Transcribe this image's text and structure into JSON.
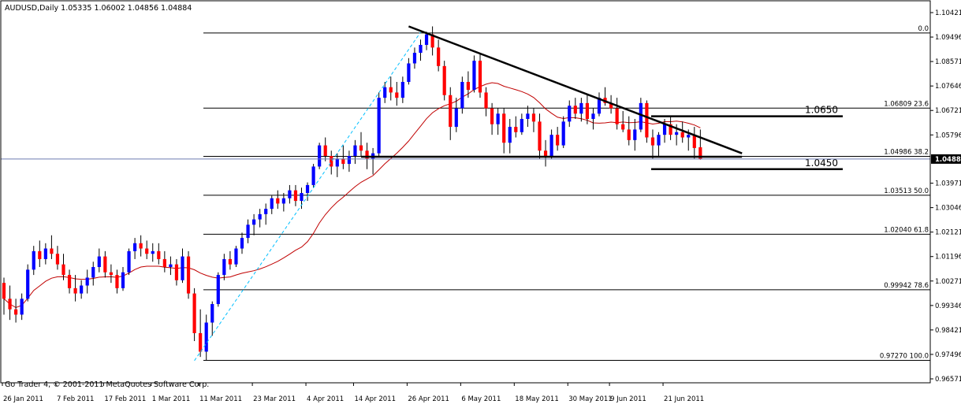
{
  "header": {
    "title": "AUDUSD,Daily  1.05335 1.06002 1.04856 1.04884"
  },
  "footer": {
    "copyright": "Go Trader 4, © 2001-2011 MetaQuotes Software Corp."
  },
  "colors": {
    "up": "#0000ff",
    "down": "#ff0000",
    "wick": "#000000",
    "ma": "#c00000",
    "fib": "#000000",
    "trend": "#000000",
    "ascending": "#00bfff",
    "current_price_line": "#6d7bb0",
    "price_tag_bg": "#000000",
    "price_tag_text": "#ffffff",
    "frame": "#000000"
  },
  "chart_data": {
    "type": "candlestick",
    "symbol": "AUDUSD",
    "timeframe": "Daily",
    "ohlc_header": {
      "open": 1.05335,
      "high": 1.06002,
      "low": 1.04856,
      "close": 1.04884
    },
    "ylim": [
      0.96571,
      1.10421
    ],
    "y_ticks": [
      "1.10421",
      "1.09496",
      "1.08571",
      "1.07646",
      "1.06721",
      "1.05796",
      "1.04884",
      "1.03971",
      "1.03046",
      "1.02121",
      "1.01196",
      "1.00271",
      "0.99346",
      "0.98421",
      "0.97496",
      "0.96571"
    ],
    "current_price": "1.04884",
    "x_labels": [
      "26 Jan 2011",
      "7 Feb 2011",
      "17 Feb 2011",
      "1 Mar 2011",
      "11 Mar 2011",
      "23 Mar 2011",
      "4 Apr 2011",
      "14 Apr 2011",
      "26 Apr 2011",
      "6 May 2011",
      "18 May 2011",
      "30 May 2011",
      "9 Jun 2011",
      "21 Jun 2011"
    ],
    "label_bars": [
      0,
      9,
      17,
      25,
      33,
      42,
      51,
      59,
      68,
      77,
      86,
      95,
      102,
      111
    ],
    "fib_levels": [
      {
        "price": 1.09649,
        "label": "0.0"
      },
      {
        "price": 1.06809,
        "label": "1.06809  23.6"
      },
      {
        "price": 1.04986,
        "label": "1.04986  38.2"
      },
      {
        "price": 1.03513,
        "label": "1.03513  50.0"
      },
      {
        "price": 1.0204,
        "label": "1.02040  61.8"
      },
      {
        "price": 0.99942,
        "label": "0.99942  78.6"
      },
      {
        "price": 0.9727,
        "label": "0.97270  100.0"
      }
    ],
    "annotations": [
      {
        "text": "1.0650",
        "price": 1.065
      },
      {
        "text": "1.0450",
        "price": 1.045
      }
    ],
    "trendline": {
      "start_bar": 68,
      "start_price": 1.099,
      "end_bar": 124,
      "end_price": 1.051
    },
    "support_line": {
      "start_bar": 60,
      "end_bar": 124,
      "price": 1.0497
    },
    "ascending_line": {
      "start_bar": 32,
      "start_price": 0.9726,
      "end_bar": 70,
      "end_price": 1.0968
    },
    "ma_period": 20,
    "candles": [
      [
        1.002,
        1.004,
        0.99,
        0.996
      ],
      [
        0.996,
        1.001,
        0.988,
        0.992
      ],
      [
        0.992,
        0.996,
        0.987,
        0.99
      ],
      [
        0.99,
        0.998,
        0.988,
        0.996
      ],
      [
        0.996,
        1.009,
        0.995,
        1.007
      ],
      [
        1.007,
        1.016,
        1.005,
        1.014
      ],
      [
        1.014,
        1.018,
        1.008,
        1.011
      ],
      [
        1.011,
        1.017,
        1.009,
        1.015
      ],
      [
        1.015,
        1.02,
        1.011,
        1.013
      ],
      [
        1.013,
        1.016,
        1.007,
        1.009
      ],
      [
        1.009,
        1.013,
        1.003,
        1.005
      ],
      [
        1.005,
        1.007,
        0.998,
        1.0
      ],
      [
        1.0,
        1.005,
        0.995,
        0.998
      ],
      [
        0.998,
        1.003,
        0.996,
        1.001
      ],
      [
        1.001,
        1.007,
        0.998,
        1.004
      ],
      [
        1.004,
        1.01,
        1.001,
        1.008
      ],
      [
        1.008,
        1.015,
        1.006,
        1.012
      ],
      [
        1.012,
        1.014,
        1.004,
        1.006
      ],
      [
        1.006,
        1.009,
        1.002,
        1.005
      ],
      [
        1.005,
        1.007,
        0.998,
        1.0
      ],
      [
        1.0,
        1.008,
        0.999,
        1.006
      ],
      [
        1.006,
        1.015,
        1.005,
        1.014
      ],
      [
        1.014,
        1.019,
        1.011,
        1.017
      ],
      [
        1.017,
        1.02,
        1.012,
        1.015
      ],
      [
        1.015,
        1.018,
        1.011,
        1.013
      ],
      [
        1.013,
        1.017,
        1.01,
        1.014
      ],
      [
        1.014,
        1.017,
        1.009,
        1.011
      ],
      [
        1.011,
        1.014,
        1.006,
        1.008
      ],
      [
        1.008,
        1.012,
        1.005,
        1.009
      ],
      [
        1.009,
        1.011,
        1.001,
        1.003
      ],
      [
        1.003,
        1.015,
        1.002,
        1.012
      ],
      [
        1.012,
        1.014,
        0.996,
        0.998
      ],
      [
        0.998,
        1.0,
        0.98,
        0.983
      ],
      [
        0.983,
        0.992,
        0.974,
        0.976
      ],
      [
        0.976,
        0.99,
        0.9727,
        0.987
      ],
      [
        0.987,
        0.995,
        0.982,
        0.994
      ],
      [
        0.994,
        1.006,
        0.993,
        1.005
      ],
      [
        1.005,
        1.013,
        1.003,
        1.011
      ],
      [
        1.011,
        1.014,
        1.007,
        1.009
      ],
      [
        1.009,
        1.016,
        1.008,
        1.015
      ],
      [
        1.015,
        1.021,
        1.013,
        1.019
      ],
      [
        1.019,
        1.026,
        1.017,
        1.024
      ],
      [
        1.024,
        1.028,
        1.02,
        1.026
      ],
      [
        1.026,
        1.03,
        1.023,
        1.028
      ],
      [
        1.028,
        1.032,
        1.024,
        1.03
      ],
      [
        1.03,
        1.035,
        1.028,
        1.034
      ],
      [
        1.034,
        1.037,
        1.03,
        1.032
      ],
      [
        1.032,
        1.036,
        1.029,
        1.034
      ],
      [
        1.034,
        1.039,
        1.032,
        1.037
      ],
      [
        1.037,
        1.039,
        1.031,
        1.033
      ],
      [
        1.033,
        1.038,
        1.03,
        1.036
      ],
      [
        1.036,
        1.04,
        1.033,
        1.039
      ],
      [
        1.039,
        1.047,
        1.038,
        1.046
      ],
      [
        1.046,
        1.055,
        1.045,
        1.054
      ],
      [
        1.054,
        1.057,
        1.048,
        1.05
      ],
      [
        1.05,
        1.052,
        1.043,
        1.046
      ],
      [
        1.046,
        1.051,
        1.042,
        1.049
      ],
      [
        1.049,
        1.054,
        1.045,
        1.047
      ],
      [
        1.047,
        1.052,
        1.044,
        1.05
      ],
      [
        1.05,
        1.056,
        1.047,
        1.054
      ],
      [
        1.054,
        1.059,
        1.05,
        1.052
      ],
      [
        1.052,
        1.055,
        1.045,
        1.049
      ],
      [
        1.049,
        1.053,
        1.043,
        1.051
      ],
      [
        1.051,
        1.074,
        1.05,
        1.072
      ],
      [
        1.072,
        1.078,
        1.07,
        1.076
      ],
      [
        1.076,
        1.08,
        1.071,
        1.074
      ],
      [
        1.074,
        1.078,
        1.069,
        1.072
      ],
      [
        1.072,
        1.08,
        1.07,
        1.078
      ],
      [
        1.078,
        1.087,
        1.077,
        1.085
      ],
      [
        1.085,
        1.091,
        1.083,
        1.089
      ],
      [
        1.089,
        1.094,
        1.086,
        1.092
      ],
      [
        1.092,
        1.097,
        1.09,
        1.096
      ],
      [
        1.096,
        1.099,
        1.088,
        1.091
      ],
      [
        1.091,
        1.094,
        1.082,
        1.084
      ],
      [
        1.084,
        1.086,
        1.071,
        1.073
      ],
      [
        1.073,
        1.076,
        1.056,
        1.061
      ],
      [
        1.061,
        1.072,
        1.059,
        1.068
      ],
      [
        1.068,
        1.08,
        1.066,
        1.078
      ],
      [
        1.078,
        1.082,
        1.072,
        1.075
      ],
      [
        1.075,
        1.088,
        1.074,
        1.086
      ],
      [
        1.086,
        1.089,
        1.072,
        1.074
      ],
      [
        1.074,
        1.076,
        1.065,
        1.068
      ],
      [
        1.068,
        1.07,
        1.058,
        1.062
      ],
      [
        1.062,
        1.068,
        1.058,
        1.066
      ],
      [
        1.066,
        1.068,
        1.051,
        1.055
      ],
      [
        1.055,
        1.064,
        1.051,
        1.061
      ],
      [
        1.061,
        1.065,
        1.057,
        1.059
      ],
      [
        1.059,
        1.066,
        1.058,
        1.064
      ],
      [
        1.064,
        1.069,
        1.061,
        1.066
      ],
      [
        1.066,
        1.068,
        1.059,
        1.063
      ],
      [
        1.063,
        1.066,
        1.049,
        1.052
      ],
      [
        1.052,
        1.056,
        1.046,
        1.05
      ],
      [
        1.05,
        1.06,
        1.049,
        1.058
      ],
      [
        1.058,
        1.061,
        1.052,
        1.054
      ],
      [
        1.054,
        1.065,
        1.053,
        1.063
      ],
      [
        1.063,
        1.071,
        1.061,
        1.069
      ],
      [
        1.069,
        1.072,
        1.064,
        1.066
      ],
      [
        1.066,
        1.072,
        1.063,
        1.07
      ],
      [
        1.07,
        1.073,
        1.062,
        1.064
      ],
      [
        1.064,
        1.068,
        1.06,
        1.066
      ],
      [
        1.066,
        1.074,
        1.065,
        1.072
      ],
      [
        1.072,
        1.076,
        1.069,
        1.07
      ],
      [
        1.07,
        1.073,
        1.066,
        1.068
      ],
      [
        1.068,
        1.072,
        1.06,
        1.062
      ],
      [
        1.062,
        1.067,
        1.059,
        1.06
      ],
      [
        1.06,
        1.065,
        1.054,
        1.056
      ],
      [
        1.056,
        1.064,
        1.052,
        1.06
      ],
      [
        1.06,
        1.072,
        1.059,
        1.07
      ],
      [
        1.07,
        1.071,
        1.055,
        1.057
      ],
      [
        1.057,
        1.06,
        1.049,
        1.054
      ],
      [
        1.054,
        1.059,
        1.05,
        1.058
      ],
      [
        1.058,
        1.064,
        1.055,
        1.062
      ],
      [
        1.062,
        1.065,
        1.056,
        1.058
      ],
      [
        1.058,
        1.062,
        1.054,
        1.059
      ],
      [
        1.059,
        1.063,
        1.055,
        1.057
      ],
      [
        1.057,
        1.06,
        1.052,
        1.058
      ],
      [
        1.058,
        1.061,
        1.049,
        1.053
      ],
      [
        1.0533,
        1.06,
        1.0486,
        1.0488
      ]
    ]
  }
}
